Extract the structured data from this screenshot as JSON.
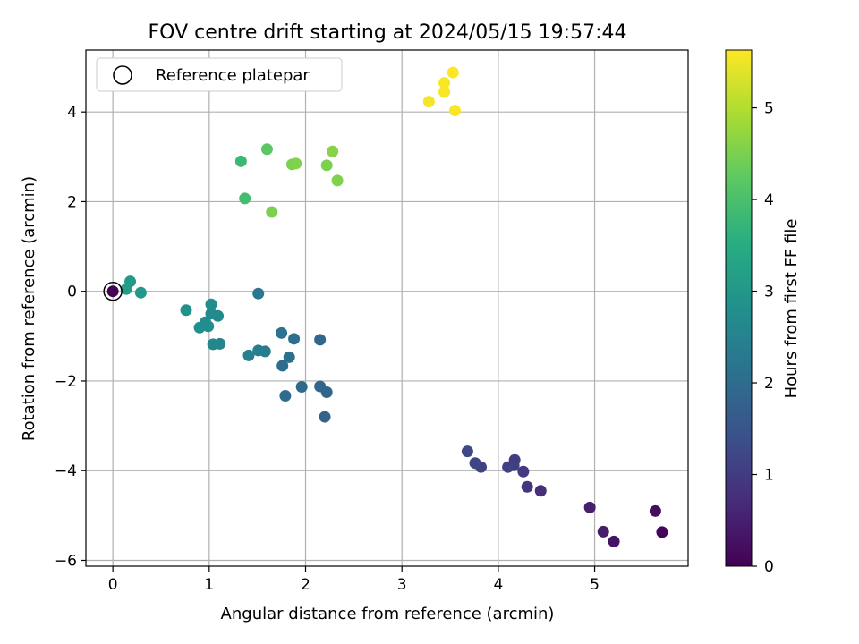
{
  "chart_data": {
    "type": "scatter",
    "title": "FOV centre drift starting at 2024/05/15 19:57:44",
    "xlabel": "Angular distance from reference (arcmin)",
    "ylabel": "Rotation from reference (arcmin)",
    "xlim": [
      -0.28,
      5.97
    ],
    "ylim": [
      -6.13,
      5.38
    ],
    "xticks": [
      0,
      1,
      2,
      3,
      4,
      5
    ],
    "yticks": [
      -6,
      -4,
      -2,
      0,
      2,
      4
    ],
    "xtick_labels": [
      "0",
      "1",
      "2",
      "3",
      "4",
      "5"
    ],
    "ytick_labels": [
      "−6",
      "−4",
      "−2",
      "0",
      "2",
      "4"
    ],
    "grid": true,
    "legend": {
      "placement": "top-left",
      "entries": [
        {
          "label": "Reference platepar",
          "marker": "open-circle"
        }
      ]
    },
    "reference_point": {
      "x": 0,
      "y": 0
    },
    "colorbar": {
      "label": "Hours from first FF file",
      "colormap": "viridis",
      "range": [
        0,
        5.63
      ],
      "ticks": [
        0,
        1,
        2,
        3,
        4,
        5
      ],
      "tick_labels": [
        "0",
        "1",
        "2",
        "3",
        "4",
        "5"
      ]
    },
    "points": [
      {
        "x": 0.0,
        "y": 0.0,
        "c": 0.0
      },
      {
        "x": 5.63,
        "y": -4.9,
        "c": 0.2
      },
      {
        "x": 5.7,
        "y": -5.37,
        "c": 0.05
      },
      {
        "x": 5.2,
        "y": -5.58,
        "c": 0.3
      },
      {
        "x": 5.09,
        "y": -5.36,
        "c": 0.45
      },
      {
        "x": 4.95,
        "y": -4.82,
        "c": 0.5
      },
      {
        "x": 4.44,
        "y": -4.45,
        "c": 0.75
      },
      {
        "x": 4.3,
        "y": -4.36,
        "c": 0.85
      },
      {
        "x": 4.26,
        "y": -4.02,
        "c": 0.95
      },
      {
        "x": 4.17,
        "y": -3.76,
        "c": 1.0
      },
      {
        "x": 4.16,
        "y": -3.88,
        "c": 1.05
      },
      {
        "x": 4.1,
        "y": -3.92,
        "c": 1.1
      },
      {
        "x": 3.82,
        "y": -3.92,
        "c": 1.15
      },
      {
        "x": 3.76,
        "y": -3.83,
        "c": 1.2
      },
      {
        "x": 3.68,
        "y": -3.57,
        "c": 1.25
      },
      {
        "x": 2.2,
        "y": -2.8,
        "c": 1.8
      },
      {
        "x": 2.22,
        "y": -2.25,
        "c": 1.85
      },
      {
        "x": 2.15,
        "y": -2.12,
        "c": 1.9
      },
      {
        "x": 1.96,
        "y": -2.13,
        "c": 1.95
      },
      {
        "x": 1.79,
        "y": -2.33,
        "c": 2.0
      },
      {
        "x": 1.76,
        "y": -1.66,
        "c": 2.05
      },
      {
        "x": 1.83,
        "y": -1.47,
        "c": 2.1
      },
      {
        "x": 1.75,
        "y": -0.93,
        "c": 2.15
      },
      {
        "x": 1.88,
        "y": -1.06,
        "c": 2.1
      },
      {
        "x": 2.15,
        "y": -1.08,
        "c": 1.9
      },
      {
        "x": 1.51,
        "y": -0.05,
        "c": 2.25
      },
      {
        "x": 1.58,
        "y": -1.34,
        "c": 2.35
      },
      {
        "x": 1.51,
        "y": -1.32,
        "c": 2.4
      },
      {
        "x": 1.41,
        "y": -1.43,
        "c": 2.45
      },
      {
        "x": 1.11,
        "y": -1.17,
        "c": 2.55
      },
      {
        "x": 1.04,
        "y": -1.18,
        "c": 2.6
      },
      {
        "x": 1.09,
        "y": -0.55,
        "c": 2.65
      },
      {
        "x": 1.02,
        "y": -0.5,
        "c": 2.7
      },
      {
        "x": 1.02,
        "y": -0.29,
        "c": 2.75
      },
      {
        "x": 0.99,
        "y": -0.78,
        "c": 2.8
      },
      {
        "x": 0.96,
        "y": -0.69,
        "c": 2.75
      },
      {
        "x": 0.9,
        "y": -0.81,
        "c": 2.8
      },
      {
        "x": 0.76,
        "y": -0.42,
        "c": 2.85
      },
      {
        "x": 0.29,
        "y": -0.03,
        "c": 3.0
      },
      {
        "x": 0.18,
        "y": 0.22,
        "c": 3.05
      },
      {
        "x": 0.14,
        "y": 0.05,
        "c": 3.1
      },
      {
        "x": 1.37,
        "y": 2.07,
        "c": 3.9
      },
      {
        "x": 1.33,
        "y": 2.9,
        "c": 3.8
      },
      {
        "x": 1.6,
        "y": 3.17,
        "c": 4.2
      },
      {
        "x": 1.65,
        "y": 1.77,
        "c": 4.5
      },
      {
        "x": 1.86,
        "y": 2.83,
        "c": 4.5
      },
      {
        "x": 1.9,
        "y": 2.85,
        "c": 4.55
      },
      {
        "x": 2.22,
        "y": 2.81,
        "c": 4.5
      },
      {
        "x": 2.28,
        "y": 3.12,
        "c": 4.6
      },
      {
        "x": 2.33,
        "y": 2.47,
        "c": 4.55
      },
      {
        "x": 3.28,
        "y": 4.23,
        "c": 5.55
      },
      {
        "x": 3.44,
        "y": 4.65,
        "c": 5.6
      },
      {
        "x": 3.44,
        "y": 4.45,
        "c": 5.58
      },
      {
        "x": 3.53,
        "y": 4.88,
        "c": 5.62
      },
      {
        "x": 3.55,
        "y": 4.03,
        "c": 5.6
      }
    ]
  }
}
